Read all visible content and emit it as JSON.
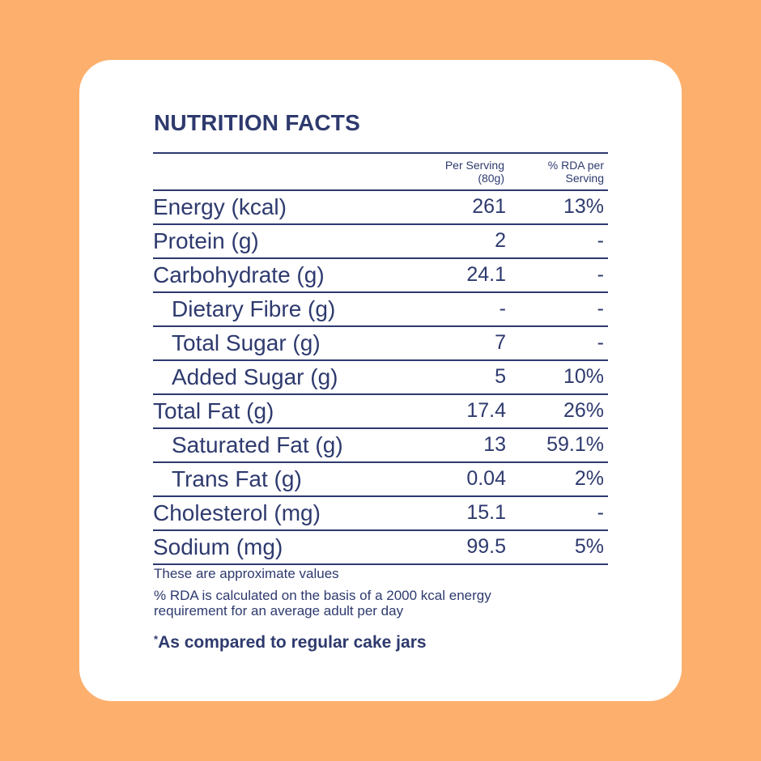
{
  "title": "NUTRITION FACTS",
  "columns": {
    "per_serving": "Per Serving",
    "per_serving_unit": "(80g)",
    "rda": "% RDA per",
    "rda_unit": "Serving"
  },
  "rows": [
    {
      "label": "Energy (kcal)",
      "serving": "261",
      "rda": "13%",
      "sub": false
    },
    {
      "label": "Protein (g)",
      "serving": "2",
      "rda": "-",
      "sub": false
    },
    {
      "label": "Carbohydrate (g)",
      "serving": "24.1",
      "rda": "-",
      "sub": false
    },
    {
      "label": "Dietary Fibre (g)",
      "serving": "-",
      "rda": "-",
      "sub": true
    },
    {
      "label": "Total Sugar (g)",
      "serving": "7",
      "rda": "-",
      "sub": true
    },
    {
      "label": "Added Sugar (g)",
      "serving": "5",
      "rda": "10%",
      "sub": true
    },
    {
      "label": "Total Fat (g)",
      "serving": "17.4",
      "rda": "26%",
      "sub": false
    },
    {
      "label": "Saturated Fat (g)",
      "serving": "13",
      "rda": "59.1%",
      "sub": true
    },
    {
      "label": "Trans Fat (g)",
      "serving": "0.04",
      "rda": "2%",
      "sub": true
    },
    {
      "label": "Cholesterol (mg)",
      "serving": "15.1",
      "rda": "-",
      "sub": false
    },
    {
      "label": "Sodium (mg)",
      "serving": "99.5",
      "rda": "5%",
      "sub": false
    }
  ],
  "notes": {
    "approx": "These are approximate values",
    "rda_line1": "%  RDA is calculated on the basis of a 2000 kcal energy",
    "rda_line2": "requirement for an average adult per day",
    "compare_mark": "*",
    "compare": "As compared to regular cake jars"
  },
  "colors": {
    "background": "#FDB06E",
    "card": "#FFFFFF",
    "text": "#2E3A6E"
  }
}
